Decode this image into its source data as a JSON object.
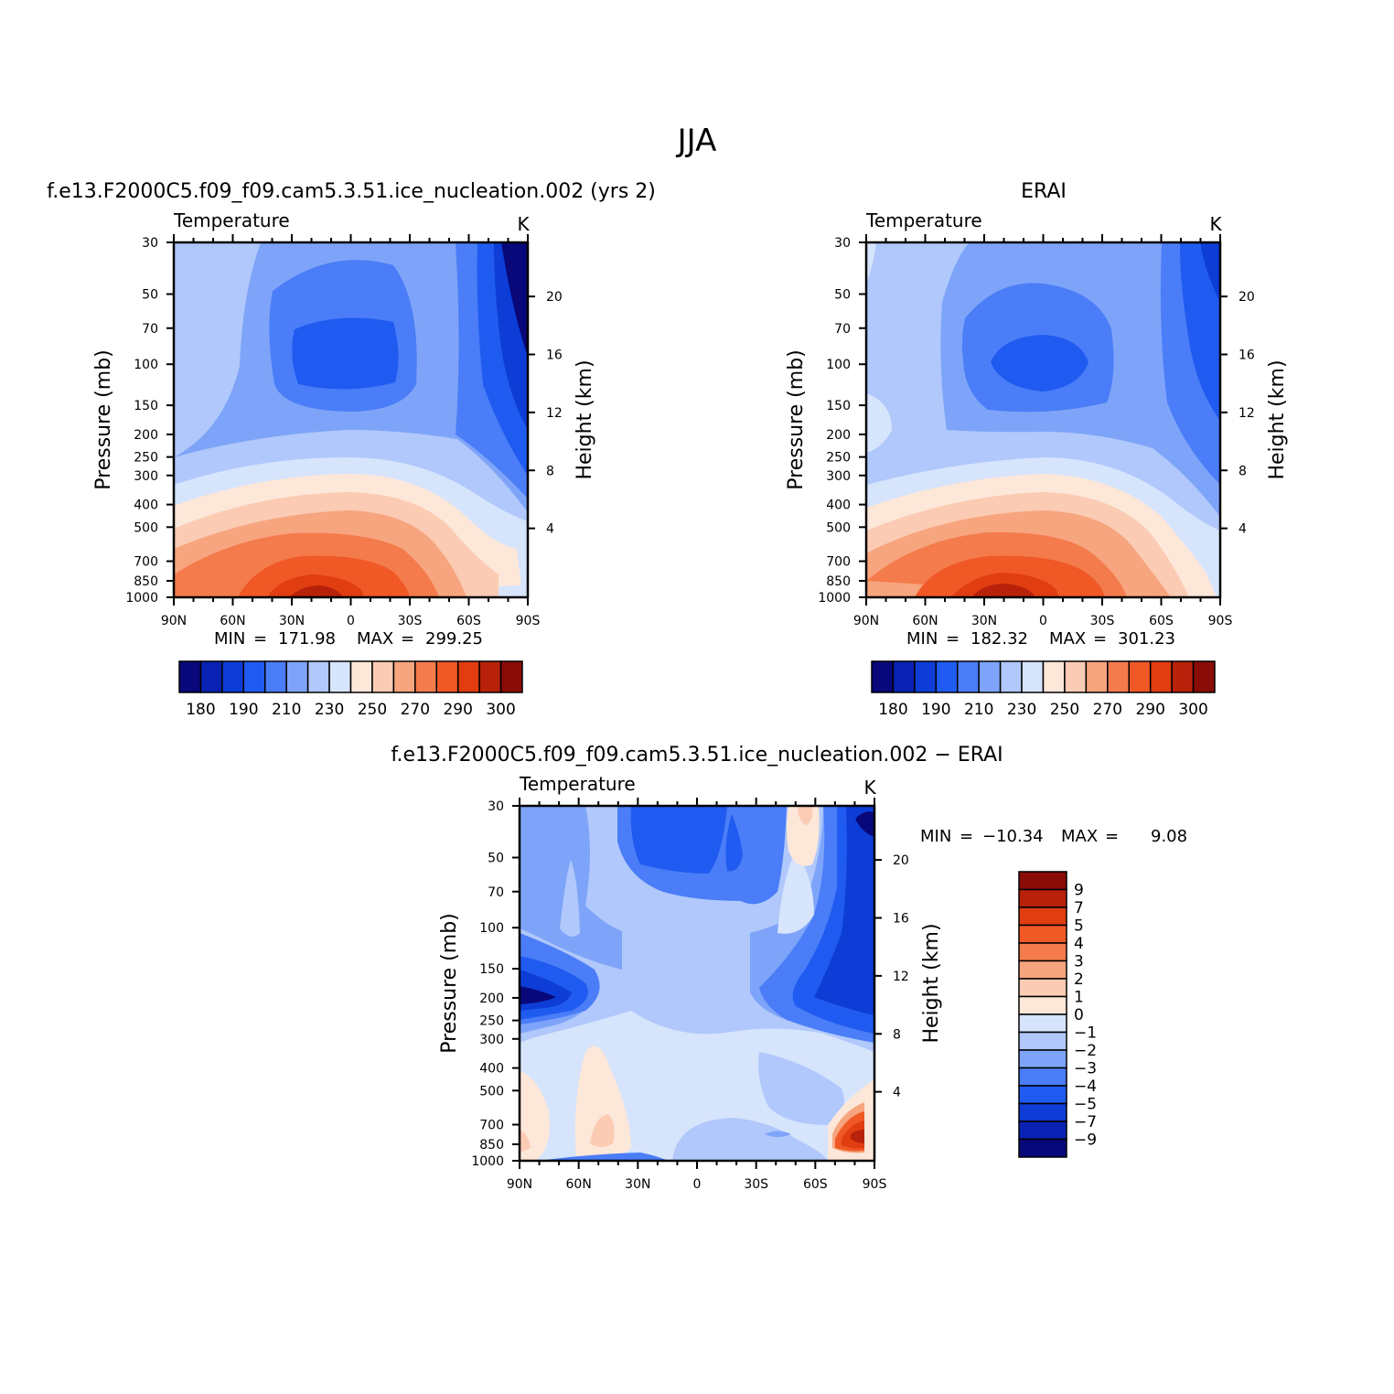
{
  "figure": {
    "title": "JJA",
    "colors": {
      "frame": "#000000",
      "background": "#ffffff"
    }
  },
  "chart_data": [
    {
      "type": "heatmap",
      "title": "f.e13.F2000C5.f09_f09.cam5.3.51.ice_nucleation.002 (yrs 2)",
      "subtitle_left": "Temperature",
      "units": "K",
      "ylabel": "Pressure (mb)",
      "ylabel_right": "Height (km)",
      "x_ticks": [
        "90N",
        "60N",
        "30N",
        "0",
        "30S",
        "60S",
        "90S"
      ],
      "y_ticks": [
        "30",
        "50",
        "70",
        "100",
        "150",
        "200",
        "250",
        "300",
        "400",
        "500",
        "700",
        "850",
        "1000"
      ],
      "y_right_ticks": [
        "20",
        "16",
        "12",
        "8",
        "4"
      ],
      "stats": {
        "min_label": "MIN",
        "min": "171.98",
        "max_label": "MAX",
        "max": "299.25"
      },
      "colorbar": {
        "orientation": "horizontal",
        "labels": [
          "180",
          "190",
          "210",
          "230",
          "250",
          "270",
          "290",
          "300"
        ],
        "colors": [
          "#08087a",
          "#0a22b3",
          "#0d3dd6",
          "#1f5bf0",
          "#4a7df7",
          "#7ea4f9",
          "#b0c8fb",
          "#d6e4fc",
          "#fde7d9",
          "#fbcbb3",
          "#f7a57f",
          "#f47b4c",
          "#f05826",
          "#e03d10",
          "#b8210a",
          "#8a0c07"
        ]
      }
    },
    {
      "type": "heatmap",
      "title": "ERAI",
      "subtitle_left": "Temperature",
      "units": "K",
      "ylabel": "Pressure (mb)",
      "ylabel_right": "Height (km)",
      "x_ticks": [
        "90N",
        "60N",
        "30N",
        "0",
        "30S",
        "60S",
        "90S"
      ],
      "y_ticks": [
        "30",
        "50",
        "70",
        "100",
        "150",
        "200",
        "250",
        "300",
        "400",
        "500",
        "700",
        "850",
        "1000"
      ],
      "y_right_ticks": [
        "20",
        "16",
        "12",
        "8",
        "4"
      ],
      "stats": {
        "min_label": "MIN",
        "min": "182.32",
        "max_label": "MAX",
        "max": "301.23"
      },
      "colorbar": {
        "orientation": "horizontal",
        "labels": [
          "180",
          "190",
          "210",
          "230",
          "250",
          "270",
          "290",
          "300"
        ],
        "colors": [
          "#08087a",
          "#0a22b3",
          "#0d3dd6",
          "#1f5bf0",
          "#4a7df7",
          "#7ea4f9",
          "#b0c8fb",
          "#d6e4fc",
          "#fde7d9",
          "#fbcbb3",
          "#f7a57f",
          "#f47b4c",
          "#f05826",
          "#e03d10",
          "#b8210a",
          "#8a0c07"
        ]
      }
    },
    {
      "type": "heatmap",
      "title": "f.e13.F2000C5.f09_f09.cam5.3.51.ice_nucleation.002 − ERAI",
      "subtitle_left": "Temperature",
      "units": "K",
      "ylabel": "Pressure (mb)",
      "ylabel_right": "Height (km)",
      "x_ticks": [
        "90N",
        "60N",
        "30N",
        "0",
        "30S",
        "60S",
        "90S"
      ],
      "y_ticks": [
        "30",
        "50",
        "70",
        "100",
        "150",
        "200",
        "250",
        "300",
        "400",
        "500",
        "700",
        "850",
        "1000"
      ],
      "y_right_ticks": [
        "20",
        "16",
        "12",
        "8",
        "4"
      ],
      "stats": {
        "min_label": "MIN",
        "min": "−10.34",
        "max_label": "MAX",
        "max": "9.08"
      },
      "colorbar": {
        "orientation": "vertical",
        "labels": [
          "9",
          "7",
          "5",
          "4",
          "3",
          "2",
          "1",
          "0",
          "−1",
          "−2",
          "−3",
          "−4",
          "−5",
          "−7",
          "−9"
        ],
        "colors": [
          "#8a0c07",
          "#b8210a",
          "#e03d10",
          "#f05826",
          "#f47b4c",
          "#f7a57f",
          "#fbcbb3",
          "#fde7d9",
          "#d6e4fc",
          "#b0c8fb",
          "#7ea4f9",
          "#4a7df7",
          "#1f5bf0",
          "#0d3dd6",
          "#0a22b3",
          "#08087a"
        ]
      }
    }
  ]
}
